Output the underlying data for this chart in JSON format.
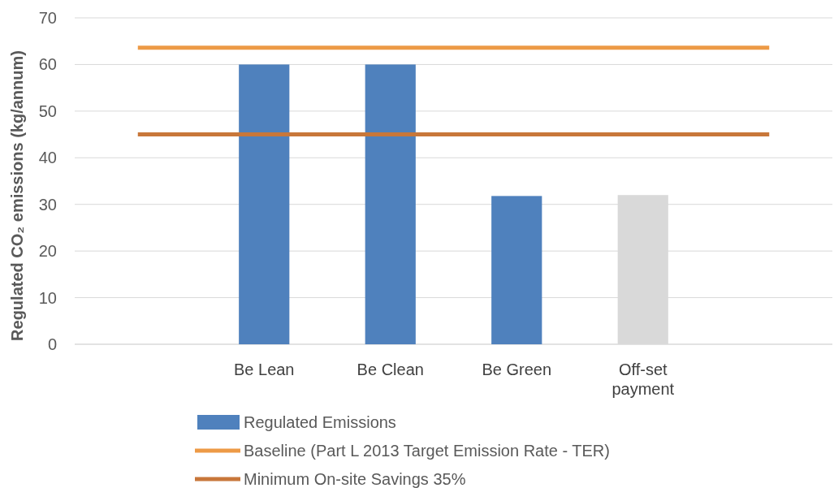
{
  "chart_data": {
    "type": "bar",
    "ylabel": "Regulated CO₂ emissions (kg/annum)",
    "categories": [
      null,
      "Be Lean",
      "Be Clean",
      "Be Green",
      "Off-set payment",
      null
    ],
    "series": [
      {
        "name": "Regulated Emissions",
        "color": "#4f81bd",
        "colors": [
          null,
          "#4f81bd",
          "#4f81bd",
          "#4f81bd",
          "#d9d9d9",
          null
        ],
        "values": [
          null,
          60,
          60,
          31.8,
          32,
          null
        ]
      },
      {
        "name": "Baseline (Part L 2013 Target Emission Rate - TER)",
        "type": "line",
        "color": "#ed9a46",
        "values": [
          63.6,
          63.6,
          63.6,
          63.6,
          63.6,
          63.6
        ]
      },
      {
        "name": "Minimum On-site Savings 35%",
        "type": "line",
        "color": "#c8773a",
        "values": [
          45,
          45,
          45,
          45,
          45,
          45
        ]
      }
    ],
    "ylim": [
      0,
      70
    ],
    "yticks": [
      0,
      10,
      20,
      30,
      40,
      50,
      60,
      70
    ],
    "grid": "y",
    "legend": "bottom"
  }
}
